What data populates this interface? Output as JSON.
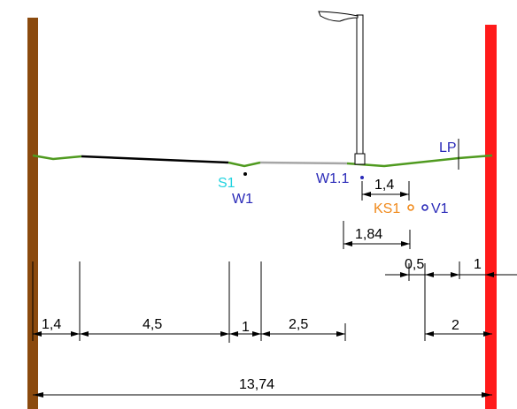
{
  "colors": {
    "left_wall": "#8b4a0e",
    "right_wall": "#ff1a1a",
    "ground": "#4f9a1f",
    "road_dark": "#000000",
    "road_light": "#a6a6a6",
    "label_blue": "#2a2ab8",
    "label_cyan": "#22d3e0",
    "label_orange": "#f08a1c"
  },
  "icons": [
    "street-lamp-icon",
    "point-marker-icon",
    "manhole-icon"
  ],
  "labels": {
    "s1": "S1",
    "w1": "W1",
    "w1_1": "W1.1",
    "ks1": "KS1",
    "v1": "V1",
    "lp": "LP"
  },
  "dimensions": {
    "d_1_4_top": "1,4",
    "d_1_84": "1,84",
    "d_0_5": "0,5",
    "d_1_right": "1",
    "d_1_4_left": "1,4",
    "d_4_5": "4,5",
    "d_1_mid": "1",
    "d_2_5": "2,5",
    "d_2": "2",
    "d_total": "13,74"
  }
}
